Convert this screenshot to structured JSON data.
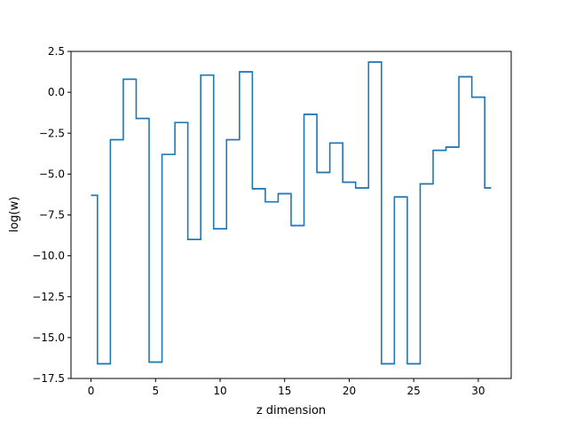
{
  "chart_data": {
    "type": "line",
    "drawstyle": "steps-mid",
    "title": "",
    "xlabel": "z dimension",
    "ylabel": "log(w)",
    "xlim": [
      -1.55,
      32.55
    ],
    "ylim": [
      -17.5,
      2.5
    ],
    "xticks": [
      0,
      5,
      10,
      15,
      20,
      25,
      30
    ],
    "xtick_labels": [
      "0",
      "5",
      "10",
      "15",
      "20",
      "25",
      "30"
    ],
    "yticks": [
      2.5,
      0,
      -2.5,
      -5,
      -7.5,
      -10,
      -12.5,
      -15,
      -17.5
    ],
    "ytick_labels": [
      "2.5",
      "0.0",
      "−2.5",
      "−5.0",
      "−7.5",
      "−10.0",
      "−12.5",
      "−15.0",
      "−17.5"
    ],
    "grid": false,
    "legend": "none",
    "series": [
      {
        "color": "#1f77b4",
        "x": [
          0,
          1,
          2,
          3,
          4,
          5,
          6,
          7,
          8,
          9,
          10,
          11,
          12,
          13,
          14,
          15,
          16,
          17,
          18,
          19,
          20,
          21,
          22,
          23,
          24,
          25,
          26,
          27,
          28,
          29,
          30,
          31
        ],
        "values": [
          -6.3,
          -16.6,
          -2.9,
          0.8,
          -1.6,
          -16.5,
          -3.8,
          -1.85,
          -9.0,
          1.05,
          -8.35,
          -2.9,
          1.25,
          -5.9,
          -6.7,
          -6.2,
          -8.15,
          -1.35,
          -4.9,
          -3.1,
          -5.5,
          -5.85,
          1.85,
          -16.6,
          -6.4,
          -16.6,
          -5.6,
          -3.55,
          -3.35,
          0.95,
          -0.3,
          -5.85
        ]
      }
    ]
  }
}
